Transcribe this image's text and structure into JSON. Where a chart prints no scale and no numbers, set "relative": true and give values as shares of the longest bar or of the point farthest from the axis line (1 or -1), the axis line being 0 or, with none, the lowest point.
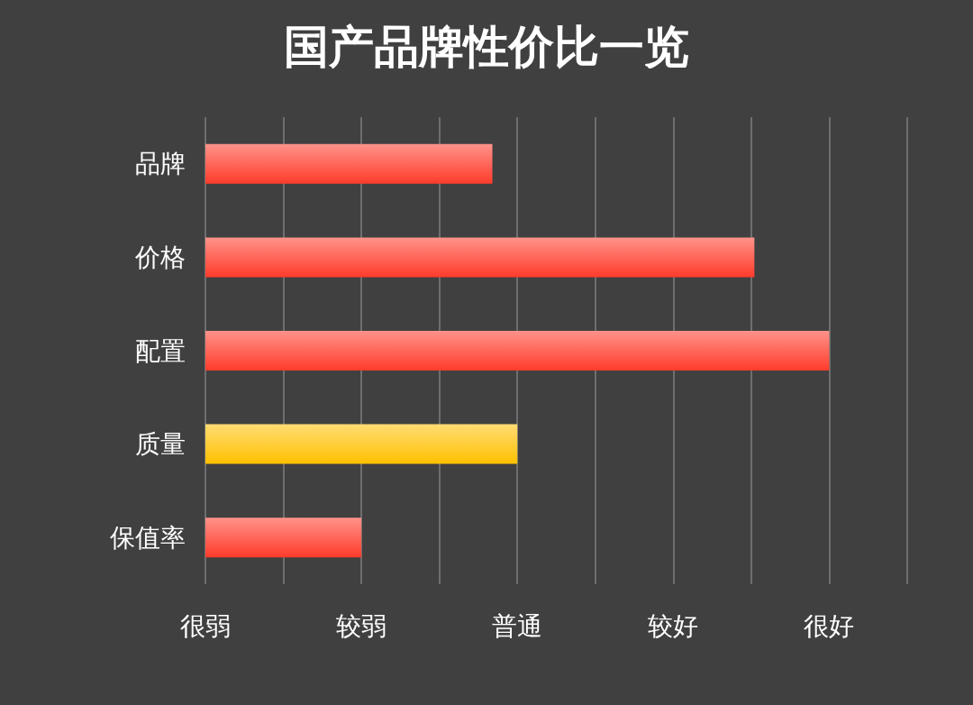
{
  "chart_data": {
    "type": "bar",
    "title": "国产品牌性价比一览",
    "orientation": "horizontal",
    "relative": true,
    "categories": [
      "品牌",
      "价格",
      "配置",
      "质量",
      "保值率"
    ],
    "values": [
      0.46,
      0.88,
      1,
      0.5,
      0.25
    ],
    "colors": [
      "#ff3b2b",
      "#ff3b2b",
      "#ff3b2b",
      "#ffc000",
      "#ff3b2b"
    ],
    "annotations": [
      "很弱",
      "较弱",
      "普通",
      "较好",
      "很好"
    ],
    "grid": "x"
  }
}
